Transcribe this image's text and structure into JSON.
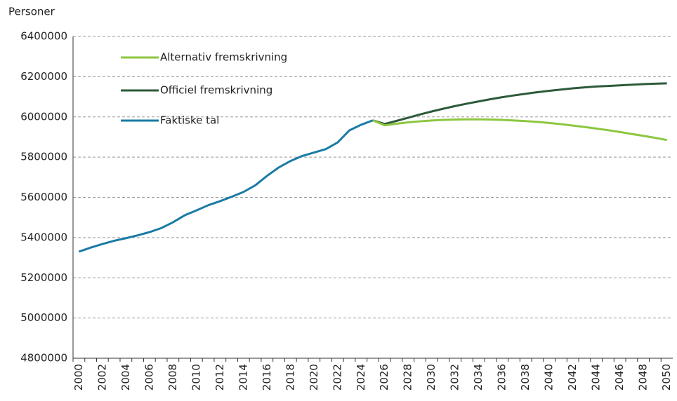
{
  "chart_data": {
    "type": "line",
    "y_label": "Personer",
    "categories": [
      "2000",
      null,
      "2002",
      null,
      "2004",
      null,
      "2006",
      null,
      "2008",
      null,
      "2010",
      null,
      "2012",
      null,
      "2014",
      null,
      "2016",
      null,
      "2018",
      null,
      "2020",
      null,
      "2022",
      null,
      "2024",
      null,
      "2026",
      null,
      "2028",
      null,
      "2030",
      null,
      "2032",
      null,
      "2034",
      null,
      "2036",
      null,
      "2038",
      null,
      "2040",
      null,
      "2042",
      null,
      "2044",
      null,
      "2046",
      null,
      "2048",
      null,
      "2050"
    ],
    "series": [
      {
        "name": "Alternativ fremskrivning",
        "color": "#8cc63f",
        "values": [
          null,
          null,
          null,
          null,
          null,
          null,
          null,
          null,
          null,
          null,
          null,
          null,
          null,
          null,
          null,
          null,
          null,
          null,
          null,
          null,
          null,
          null,
          null,
          null,
          null,
          5983000,
          5958000,
          5966000,
          5973000,
          5978000,
          5982000,
          5985000,
          5987000,
          5988000,
          5988000,
          5987000,
          5985000,
          5982000,
          5979000,
          5975000,
          5970000,
          5964000,
          5957000,
          5950000,
          5942000,
          5934000,
          5925000,
          5915000,
          5906000,
          5896000,
          5885000
        ]
      },
      {
        "name": "Officiel fremskrivning",
        "color": "#2d5a3a",
        "values": [
          null,
          null,
          null,
          null,
          null,
          null,
          null,
          null,
          null,
          null,
          null,
          null,
          null,
          null,
          null,
          null,
          null,
          null,
          null,
          null,
          null,
          null,
          null,
          null,
          null,
          5983000,
          5965000,
          5980000,
          5996000,
          6012000,
          6027000,
          6041000,
          6054000,
          6066000,
          6077000,
          6088000,
          6098000,
          6107000,
          6115000,
          6123000,
          6130000,
          6136000,
          6142000,
          6147000,
          6151000,
          6154000,
          6157000,
          6160000,
          6163000,
          6165000,
          6167000
        ]
      },
      {
        "name": "Faktiske tal",
        "color": "#1a7ba6",
        "values": [
          5330000,
          5350000,
          5368000,
          5384000,
          5397000,
          5411000,
          5427000,
          5447000,
          5476000,
          5511000,
          5535000,
          5561000,
          5581000,
          5603000,
          5627000,
          5660000,
          5707000,
          5749000,
          5781000,
          5806000,
          5823000,
          5840000,
          5873000,
          5933000,
          5961000,
          5983000,
          null,
          null,
          null,
          null,
          null,
          null,
          null,
          null,
          null,
          null,
          null,
          null,
          null,
          null,
          null,
          null,
          null,
          null,
          null,
          null,
          null,
          null,
          null,
          null,
          null
        ]
      }
    ],
    "ylim": [
      4800000,
      6400000
    ],
    "yticks": [
      4800000,
      5000000,
      5200000,
      5400000,
      5600000,
      5800000,
      6000000,
      6200000,
      6400000
    ],
    "grid": true,
    "legend": "top-left"
  }
}
